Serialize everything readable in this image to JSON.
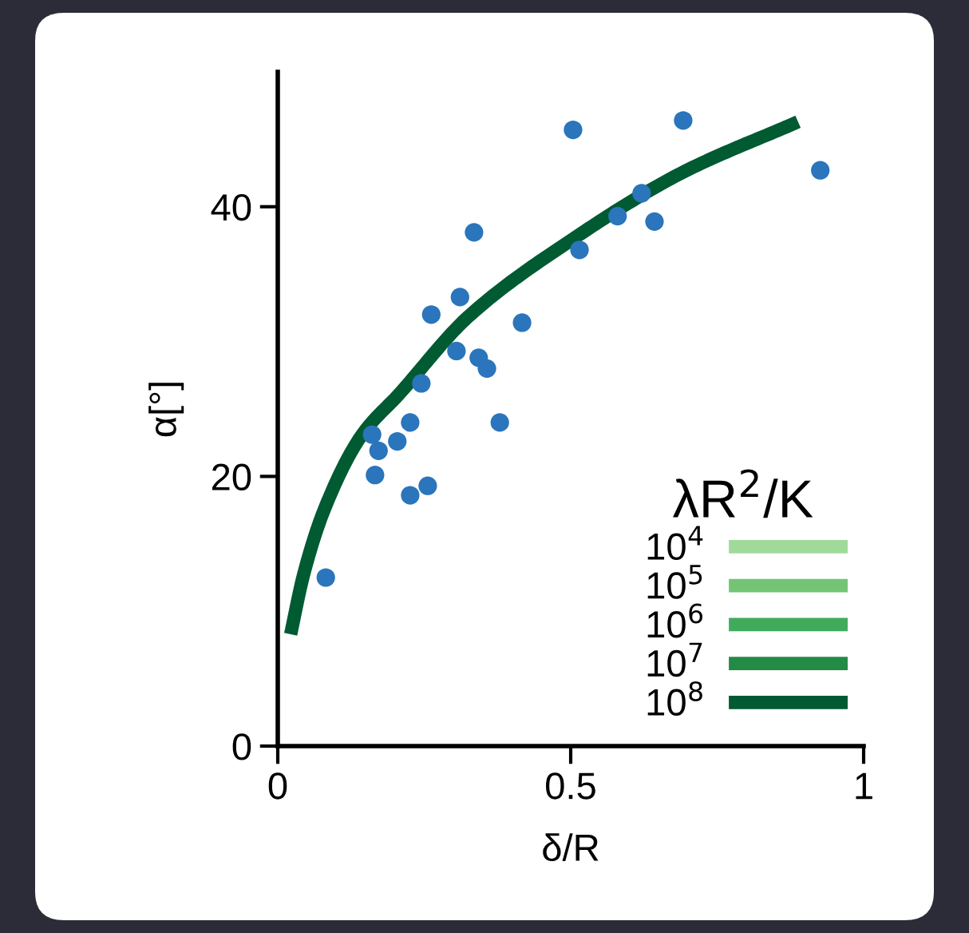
{
  "chart_data": {
    "type": "line",
    "xlabel": "δ/R",
    "ylabel": "α[°]",
    "legend_title": "λR$^{2}$/K",
    "xlim": [
      0,
      1
    ],
    "ylim": [
      0,
      50
    ],
    "xticks": [
      0,
      0.5,
      1
    ],
    "yticks": [
      0,
      20,
      40
    ],
    "grid": false,
    "legend": "bottom right",
    "marker": "none",
    "line_style": "solid",
    "series": [
      {
        "name": "10$^{4}$",
        "color": "#a1d99b"
      },
      {
        "name": "10$^{5}$",
        "color": "#74c476"
      },
      {
        "name": "10$^{6}$",
        "color": "#41ab5d"
      },
      {
        "name": "10$^{7}$",
        "color": "#238b45"
      },
      {
        "name": "10$^{8}$",
        "color": "#005a32",
        "x": [
          0.022,
          0.044,
          0.079,
          0.144,
          0.207,
          0.324,
          0.507,
          0.689,
          0.888
        ],
        "values": [
          8.3,
          12.7,
          17.5,
          23.1,
          26.1,
          31.8,
          37.7,
          42.5,
          46.3
        ]
      },
      {
        "type": "scatter",
        "marker": "circle",
        "color": "#2a75bb",
        "x": [
          0.082,
          0.161,
          0.166,
          0.172,
          0.204,
          0.226,
          0.226,
          0.256,
          0.245,
          0.262,
          0.305,
          0.311,
          0.335,
          0.343,
          0.357,
          0.379,
          0.417,
          0.504,
          0.515,
          0.58,
          0.621,
          0.643,
          0.692,
          0.926
        ],
        "values": [
          12.5,
          23.1,
          20.1,
          21.9,
          22.6,
          24.0,
          18.6,
          19.3,
          26.9,
          32.0,
          29.3,
          33.3,
          38.1,
          28.8,
          28.0,
          24.0,
          31.4,
          45.7,
          36.8,
          39.3,
          41.0,
          38.9,
          46.4,
          42.7
        ]
      }
    ]
  }
}
